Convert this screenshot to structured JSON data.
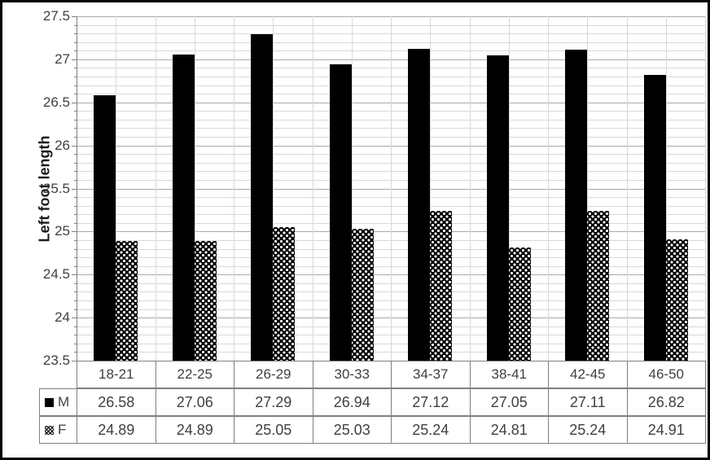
{
  "chart_data": {
    "type": "bar",
    "title": "",
    "xlabel": "",
    "ylabel": "Left foot length",
    "categories": [
      "18-21",
      "22-25",
      "26-29",
      "30-33",
      "34-37",
      "38-41",
      "42-45",
      "46-50"
    ],
    "series": [
      {
        "name": "M",
        "pattern": "solid",
        "values": [
          26.58,
          27.06,
          27.29,
          26.94,
          27.12,
          27.05,
          27.11,
          26.82
        ]
      },
      {
        "name": "F",
        "pattern": "dots",
        "values": [
          24.89,
          24.89,
          25.05,
          25.03,
          25.24,
          24.81,
          25.24,
          24.91
        ]
      }
    ],
    "ylim": [
      23.5,
      27.5
    ],
    "ytick_step": 0.5,
    "minor_gridline_step": 0.1,
    "ytick_labels": [
      "27.5",
      "27",
      "26.5",
      "26",
      "25.5",
      "25",
      "24.5",
      "24",
      "23.5"
    ],
    "grid": "horizontal major+minor gridlines; vertical gridlines at category boundaries and midpoints",
    "legend_position": "data table rows below chart",
    "data_table_shown": true
  },
  "colors": {
    "bar_fill": "#000000",
    "grid_minor": "#d9d9d9",
    "grid_major": "#aaaaaa",
    "axis_line": "#7f7f7f",
    "table_border": "#7f7f7f",
    "text": "#404040",
    "figure_border": "#000000",
    "background": "#ffffff"
  }
}
